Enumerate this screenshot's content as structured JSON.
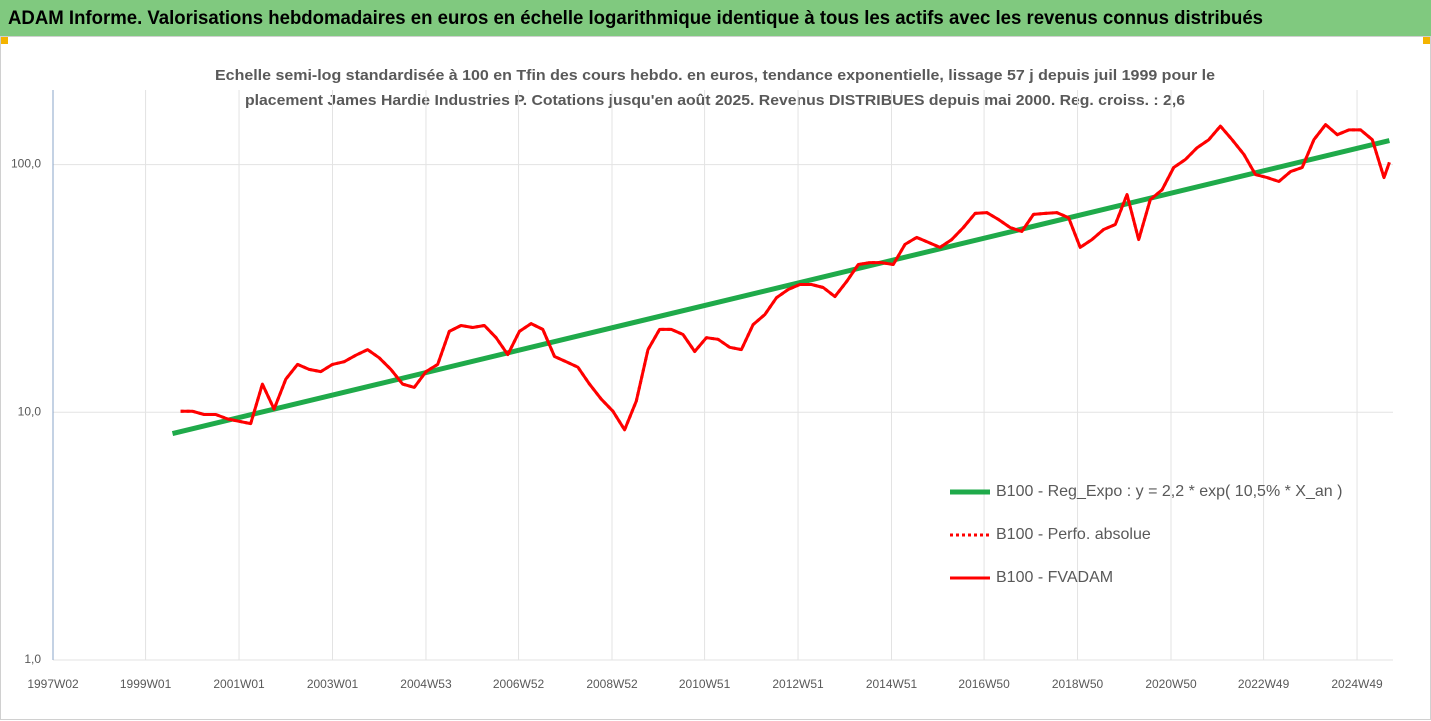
{
  "chart_data": {
    "type": "line",
    "title": "ADAM Informe. Valorisations hebdomadaires en euros en échelle logarithmique identique à tous les actifs avec les revenus connus distribués",
    "subtitle": [
      "Echelle semi-log standardisée à 100 en Tfin des cours hebdo. en euros, tendance exponentielle, lissage 57 j depuis juil 1999 pour le",
      "placement James Hardie Industries P. Cotations jusqu'en août 2025. Revenus DISTRIBUES depuis mai 2000. Reg. croiss. : 2,6"
    ],
    "log_scale": true,
    "grid": true,
    "legend": "right",
    "x": [
      "1999W40",
      "2000W01",
      "2000W14",
      "2000W27",
      "2000W40",
      "2001W01",
      "2001W14",
      "2001W27",
      "2001W40",
      "2002W01",
      "2002W14",
      "2002W27",
      "2002W40",
      "2003W01",
      "2003W14",
      "2003W27",
      "2003W40",
      "2004W01",
      "2004W14",
      "2004W27",
      "2004W40",
      "2005W01",
      "2005W14",
      "2005W27",
      "2005W40",
      "2006W01",
      "2006W14",
      "2006W27",
      "2006W40",
      "2007W01",
      "2007W14",
      "2007W27",
      "2007W40",
      "2008W01",
      "2008W14",
      "2008W27",
      "2008W40",
      "2009W01",
      "2009W14",
      "2009W27",
      "2009W40",
      "2010W01",
      "2010W14",
      "2010W27",
      "2010W40",
      "2011W01",
      "2011W14",
      "2011W27",
      "2011W40",
      "2012W01",
      "2012W14",
      "2012W27",
      "2012W40",
      "2013W01",
      "2013W14",
      "2013W27",
      "2013W40",
      "2014W01",
      "2014W14",
      "2014W27",
      "2014W40",
      "2015W01",
      "2015W14",
      "2015W27",
      "2015W40",
      "2016W01",
      "2016W14",
      "2016W27",
      "2016W40",
      "2017W01",
      "2017W14",
      "2017W27",
      "2017W40",
      "2018W01",
      "2018W14",
      "2018W27",
      "2018W40",
      "2019W01",
      "2019W14",
      "2019W27",
      "2019W40",
      "2020W01",
      "2020W14",
      "2020W27",
      "2020W40",
      "2021W01",
      "2021W14",
      "2021W27",
      "2021W40",
      "2022W01",
      "2022W14",
      "2022W27",
      "2022W40",
      "2023W01",
      "2023W14",
      "2023W27",
      "2023W40",
      "2024W01",
      "2024W14",
      "2024W27",
      "2024W40",
      "2025W01",
      "2025W14",
      "2025W27",
      "2025W33"
    ],
    "series": [
      {
        "name": "B100 - Reg_Expo : y = 2,2 * exp( 10,5% *  X_an )",
        "color": "#1faa4a",
        "style": "solid",
        "width": 5,
        "x": [
          "1999W31",
          "2025W33"
        ],
        "values": [
          8.2,
          125
        ]
      },
      {
        "name": "B100 - Perfo. absolue",
        "color": "#ff0000",
        "style": "dotted",
        "width": 3,
        "values": [
          10.1,
          10.1,
          9.8,
          9.8,
          9.4,
          9.2,
          9.0,
          13.0,
          10.3,
          13.6,
          15.6,
          14.9,
          14.6,
          15.6,
          16.0,
          17.0,
          17.9,
          16.6,
          14.9,
          13.0,
          12.6,
          14.6,
          15.6,
          21.2,
          22.4,
          22,
          22.4,
          20,
          17.1,
          21.2,
          22.8,
          21.6,
          16.8,
          16.0,
          15.2,
          13.0,
          11.3,
          10.1,
          8.5,
          11.1,
          17.9,
          21.6,
          21.6,
          20.6,
          17.6,
          20,
          19.7,
          18.3,
          17.9,
          22.6,
          24.8,
          29.0,
          31.3,
          32.8,
          32.8,
          31.9,
          29.3,
          33.7,
          39.5,
          40.2,
          40.2,
          39.5,
          47.6,
          50.8,
          48.5,
          46.3,
          49.8,
          55.7,
          63.5,
          64,
          60,
          55.7,
          53.7,
          62.9,
          63.5,
          64,
          61,
          46.3,
          49.8,
          54.7,
          57.3,
          75.7,
          49.8,
          72.2,
          79,
          97.3,
          104.8,
          117,
          126,
          143,
          126,
          110,
          91.1,
          88.6,
          85.4,
          93.7,
          97.3,
          126,
          145,
          132,
          138,
          138,
          126,
          88.6,
          102
        ]
      },
      {
        "name": "B100 - FVADAM",
        "color": "#ff0000",
        "style": "solid",
        "width": 3,
        "values": [
          10.1,
          10.1,
          9.8,
          9.8,
          9.4,
          9.2,
          9.0,
          13.0,
          10.3,
          13.6,
          15.6,
          14.9,
          14.6,
          15.6,
          16.0,
          17.0,
          17.9,
          16.6,
          14.9,
          13.0,
          12.6,
          14.6,
          15.6,
          21.2,
          22.4,
          22,
          22.4,
          20,
          17.1,
          21.2,
          22.8,
          21.6,
          16.8,
          16.0,
          15.2,
          13.0,
          11.3,
          10.1,
          8.5,
          11.1,
          17.9,
          21.6,
          21.6,
          20.6,
          17.6,
          20,
          19.7,
          18.3,
          17.9,
          22.6,
          24.8,
          29.0,
          31.3,
          32.8,
          32.8,
          31.9,
          29.3,
          33.7,
          39.5,
          40.2,
          40.2,
          39.5,
          47.6,
          50.8,
          48.5,
          46.3,
          49.8,
          55.7,
          63.5,
          64,
          60,
          55.7,
          53.7,
          62.9,
          63.5,
          64,
          61,
          46.3,
          49.8,
          54.7,
          57.3,
          75.7,
          49.8,
          72.2,
          79,
          97.3,
          104.8,
          117,
          126,
          143,
          126,
          110,
          91.1,
          88.6,
          85.4,
          93.7,
          97.3,
          126,
          145,
          132,
          138,
          138,
          126,
          88.6,
          102
        ]
      }
    ],
    "xlim": [
      "1997W02",
      "2025W37"
    ],
    "xticks": [
      "1997W02",
      "1999W01",
      "2001W01",
      "2003W01",
      "2004W53",
      "2006W52",
      "2008W52",
      "2010W51",
      "2012W51",
      "2014W51",
      "2016W50",
      "2018W50",
      "2020W50",
      "2022W49",
      "2024W49"
    ],
    "ylim": [
      1,
      200
    ],
    "yticks": [
      {
        "value": 1,
        "label": "1,0"
      },
      {
        "value": 10,
        "label": "10,0"
      },
      {
        "value": 100,
        "label": "100,0"
      }
    ]
  }
}
